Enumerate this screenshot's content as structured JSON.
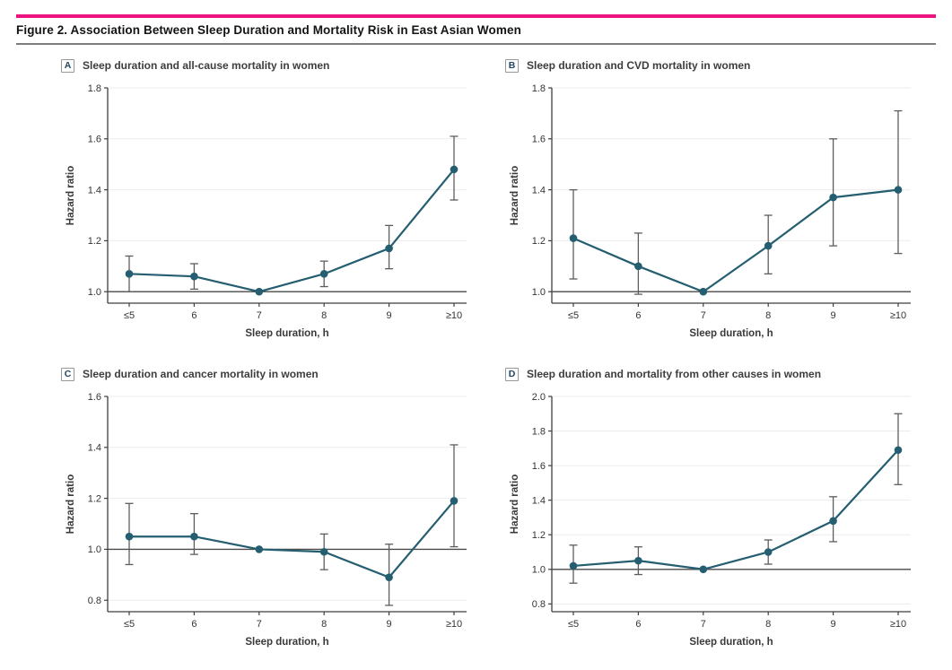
{
  "header": {
    "title": "Figure 2. Association Between Sleep Duration and Mortality Risk in East Asian Women",
    "accent_color": "#ec1380",
    "rule_color": "#7d7d7d"
  },
  "style": {
    "series_color": "#245e70",
    "error_bar_color": "#5d5d5d",
    "reference_line_color": "#4a4a4a",
    "axis_color": "#3f3f3f",
    "grid_color": "#ebebeb",
    "tick_label_color": "#333333",
    "axis_title_color": "#3a3a3a"
  },
  "chart_data": [
    {
      "type": "line",
      "panel": "A",
      "title": "Sleep duration and all-cause mortality in women",
      "xlabel": "Sleep duration, h",
      "ylabel": "Hazard ratio",
      "categories": [
        "≤5",
        "6",
        "7",
        "8",
        "9",
        "≥10"
      ],
      "values": [
        1.07,
        1.06,
        1.0,
        1.07,
        1.17,
        1.48
      ],
      "ci_low": [
        1.0,
        1.01,
        null,
        1.02,
        1.09,
        1.36
      ],
      "ci_high": [
        1.14,
        1.11,
        null,
        1.12,
        1.26,
        1.61
      ],
      "yticks": [
        1.0,
        1.2,
        1.4,
        1.6,
        1.8
      ],
      "ylim": [
        0.955,
        1.8
      ],
      "refline": 1.0,
      "grid": true,
      "legend": "none"
    },
    {
      "type": "line",
      "panel": "B",
      "title": "Sleep duration and CVD mortality in women",
      "xlabel": "Sleep duration, h",
      "ylabel": "Hazard ratio",
      "categories": [
        "≤5",
        "6",
        "7",
        "8",
        "9",
        "≥10"
      ],
      "values": [
        1.21,
        1.1,
        1.0,
        1.18,
        1.37,
        1.4
      ],
      "ci_low": [
        1.05,
        0.99,
        null,
        1.07,
        1.18,
        1.15
      ],
      "ci_high": [
        1.4,
        1.23,
        null,
        1.3,
        1.6,
        1.71
      ],
      "yticks": [
        1.0,
        1.2,
        1.4,
        1.6,
        1.8
      ],
      "ylim": [
        0.955,
        1.8
      ],
      "refline": 1.0,
      "grid": true,
      "legend": "none"
    },
    {
      "type": "line",
      "panel": "C",
      "title": "Sleep duration and cancer mortality in women",
      "xlabel": "Sleep duration, h",
      "ylabel": "Hazard ratio",
      "categories": [
        "≤5",
        "6",
        "7",
        "8",
        "9",
        "≥10"
      ],
      "values": [
        1.05,
        1.05,
        1.0,
        0.99,
        0.89,
        1.19
      ],
      "ci_low": [
        0.94,
        0.98,
        null,
        0.92,
        0.78,
        1.01
      ],
      "ci_high": [
        1.18,
        1.14,
        null,
        1.06,
        1.02,
        1.41
      ],
      "yticks": [
        0.8,
        1.0,
        1.2,
        1.4,
        1.6
      ],
      "ylim": [
        0.755,
        1.6
      ],
      "refline": 1.0,
      "grid": true,
      "legend": "none"
    },
    {
      "type": "line",
      "panel": "D",
      "title": "Sleep duration and mortality from other causes in women",
      "xlabel": "Sleep duration, h",
      "ylabel": "Hazard ratio",
      "categories": [
        "≤5",
        "6",
        "7",
        "8",
        "9",
        "≥10"
      ],
      "values": [
        1.02,
        1.05,
        1.0,
        1.1,
        1.28,
        1.69
      ],
      "ci_low": [
        0.92,
        0.97,
        null,
        1.03,
        1.16,
        1.49
      ],
      "ci_high": [
        1.14,
        1.13,
        null,
        1.17,
        1.42,
        1.9
      ],
      "yticks": [
        0.8,
        1.0,
        1.2,
        1.4,
        1.6,
        1.8,
        2.0
      ],
      "ylim": [
        0.755,
        2.0
      ],
      "refline": 1.0,
      "grid": true,
      "legend": "none"
    }
  ]
}
